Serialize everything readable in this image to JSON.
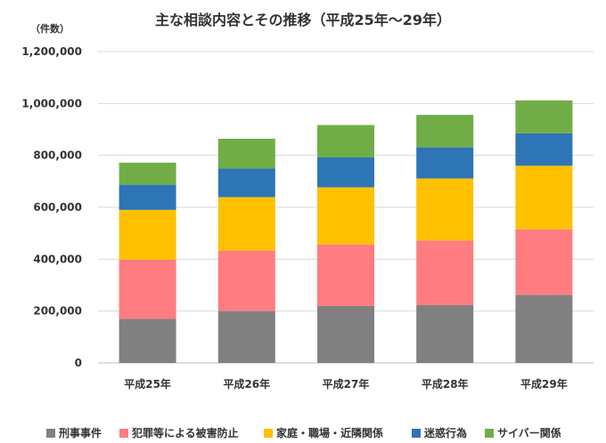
{
  "chart_data": {
    "type": "bar",
    "stacked": true,
    "title": "主な相談内容とその推移（平成25年～29年）",
    "unit_label": "（件数）",
    "categories": [
      "平成25年",
      "平成26年",
      "平成27年",
      "平成28年",
      "平成29年"
    ],
    "ylim": [
      0,
      1200000
    ],
    "yticks": [
      0,
      200000,
      400000,
      600000,
      800000,
      1000000,
      1200000
    ],
    "ytick_labels": [
      "0",
      "200,000",
      "400,000",
      "600,000",
      "800,000",
      "1,000,000",
      "1,200,000"
    ],
    "grid": true,
    "legend_position": "bottom",
    "series": [
      {
        "name": "刑事事件",
        "color": "#808080",
        "values": [
          170000,
          200000,
          220000,
          223000,
          262000
        ]
      },
      {
        "name": "犯罪等による被害防止",
        "color": "#ff7c80",
        "values": [
          228000,
          233000,
          237000,
          249000,
          253000
        ]
      },
      {
        "name": "家庭・職場・近隣関係",
        "color": "#ffc000",
        "values": [
          192000,
          206000,
          220000,
          239000,
          245000
        ]
      },
      {
        "name": "迷惑行為",
        "color": "#2e75b6",
        "values": [
          97000,
          110000,
          115000,
          120000,
          125000
        ]
      },
      {
        "name": "サイバー関係",
        "color": "#70ad47",
        "values": [
          85000,
          115000,
          125000,
          125000,
          127000
        ]
      }
    ]
  }
}
